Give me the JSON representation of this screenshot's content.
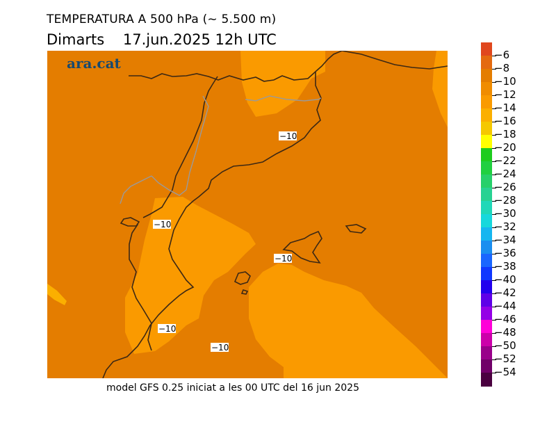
{
  "header": {
    "title": "TEMPERATURA A 500 hPa (~ 5.500 m)",
    "day": "Dimarts",
    "date_time": "17.jun.2025 12h UTC"
  },
  "map": {
    "logo_text": "ara.cat",
    "region_colors": {
      "dark_orange": "#e47d00",
      "light_orange": "#fa9a00",
      "yellow_orange": "#fbaf00",
      "coast_line": "#3c2814",
      "border_line": "#9a9a9a"
    },
    "contour_labels": [
      "−10",
      "−10",
      "−10",
      "−10",
      "−10"
    ]
  },
  "footer": {
    "text": "model GFS 0.25 iniciat a les 00 UTC del 16 jun 2025"
  },
  "colorbar": {
    "labels": [
      "−6",
      "−8",
      "−10",
      "−12",
      "−14",
      "−16",
      "−18",
      "−20",
      "−22",
      "−24",
      "−26",
      "−28",
      "−30",
      "−32",
      "−34",
      "−36",
      "−38",
      "−40",
      "−42",
      "−44",
      "−46",
      "−48",
      "−50",
      "−52",
      "−54"
    ],
    "colors": [
      "#e0471e",
      "#e46a10",
      "#e47d00",
      "#f08c00",
      "#fa9a00",
      "#fbaf00",
      "#f5c800",
      "#ffff00",
      "#1ecc1e",
      "#20d040",
      "#27d06a",
      "#28d292",
      "#20d8b8",
      "#17d8dc",
      "#16b6f0",
      "#1a8ef0",
      "#1a66ff",
      "#1038ff",
      "#2200ee",
      "#5e00e8",
      "#9400e6",
      "#ff00d8",
      "#cc00aa",
      "#99008a",
      "#700068",
      "#4a0040"
    ]
  }
}
